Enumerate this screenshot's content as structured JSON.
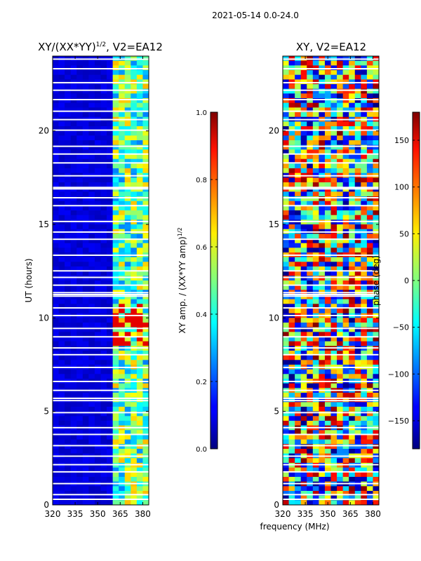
{
  "suptitle": "2021-05-14 0.0-24.0",
  "shared_xlabel": "frequency (MHz)",
  "chart_data": [
    {
      "type": "heatmap",
      "title_main": "XY/(XX*YY)",
      "title_sup": "1/2",
      "title_tail": ", V2=EA12",
      "ylabel": "UT (hours)",
      "xlim": [
        320,
        384
      ],
      "ylim": [
        0,
        24
      ],
      "xticks": [
        "320",
        "335",
        "350",
        "365",
        "380"
      ],
      "xtick_values": [
        320,
        335,
        350,
        365,
        380
      ],
      "yticks": [
        "0",
        "5",
        "10",
        "15",
        "20"
      ],
      "ytick_values": [
        0,
        5,
        10,
        15,
        20
      ],
      "colorbar": {
        "label_main": "XY amp. / (XX*YY amp)",
        "label_sup": "1/2",
        "range": [
          0.0,
          1.0
        ],
        "ticks": [
          "0.0",
          "0.2",
          "0.4",
          "0.6",
          "0.8",
          "1.0"
        ],
        "tick_values": [
          0.0,
          0.2,
          0.4,
          0.6,
          0.8,
          1.0
        ]
      },
      "colormap": "jet"
    },
    {
      "type": "heatmap",
      "title_main": "XY, V2=EA12",
      "xlim": [
        320,
        384
      ],
      "ylim": [
        0,
        24
      ],
      "xticks": [
        "320",
        "335",
        "350",
        "365",
        "380"
      ],
      "xtick_values": [
        320,
        335,
        350,
        365,
        380
      ],
      "yticks": [
        "0",
        "5",
        "10",
        "15",
        "20"
      ],
      "ytick_values": [
        0,
        5,
        10,
        15,
        20
      ],
      "colorbar": {
        "label_main": "phase (deg)",
        "range": [
          -180,
          180
        ],
        "ticks": [
          "−150",
          "−100",
          "−50",
          "0",
          "50",
          "100",
          "150"
        ],
        "tick_values": [
          -150,
          -100,
          -50,
          0,
          50,
          100,
          150
        ]
      },
      "colormap": "jet"
    }
  ]
}
